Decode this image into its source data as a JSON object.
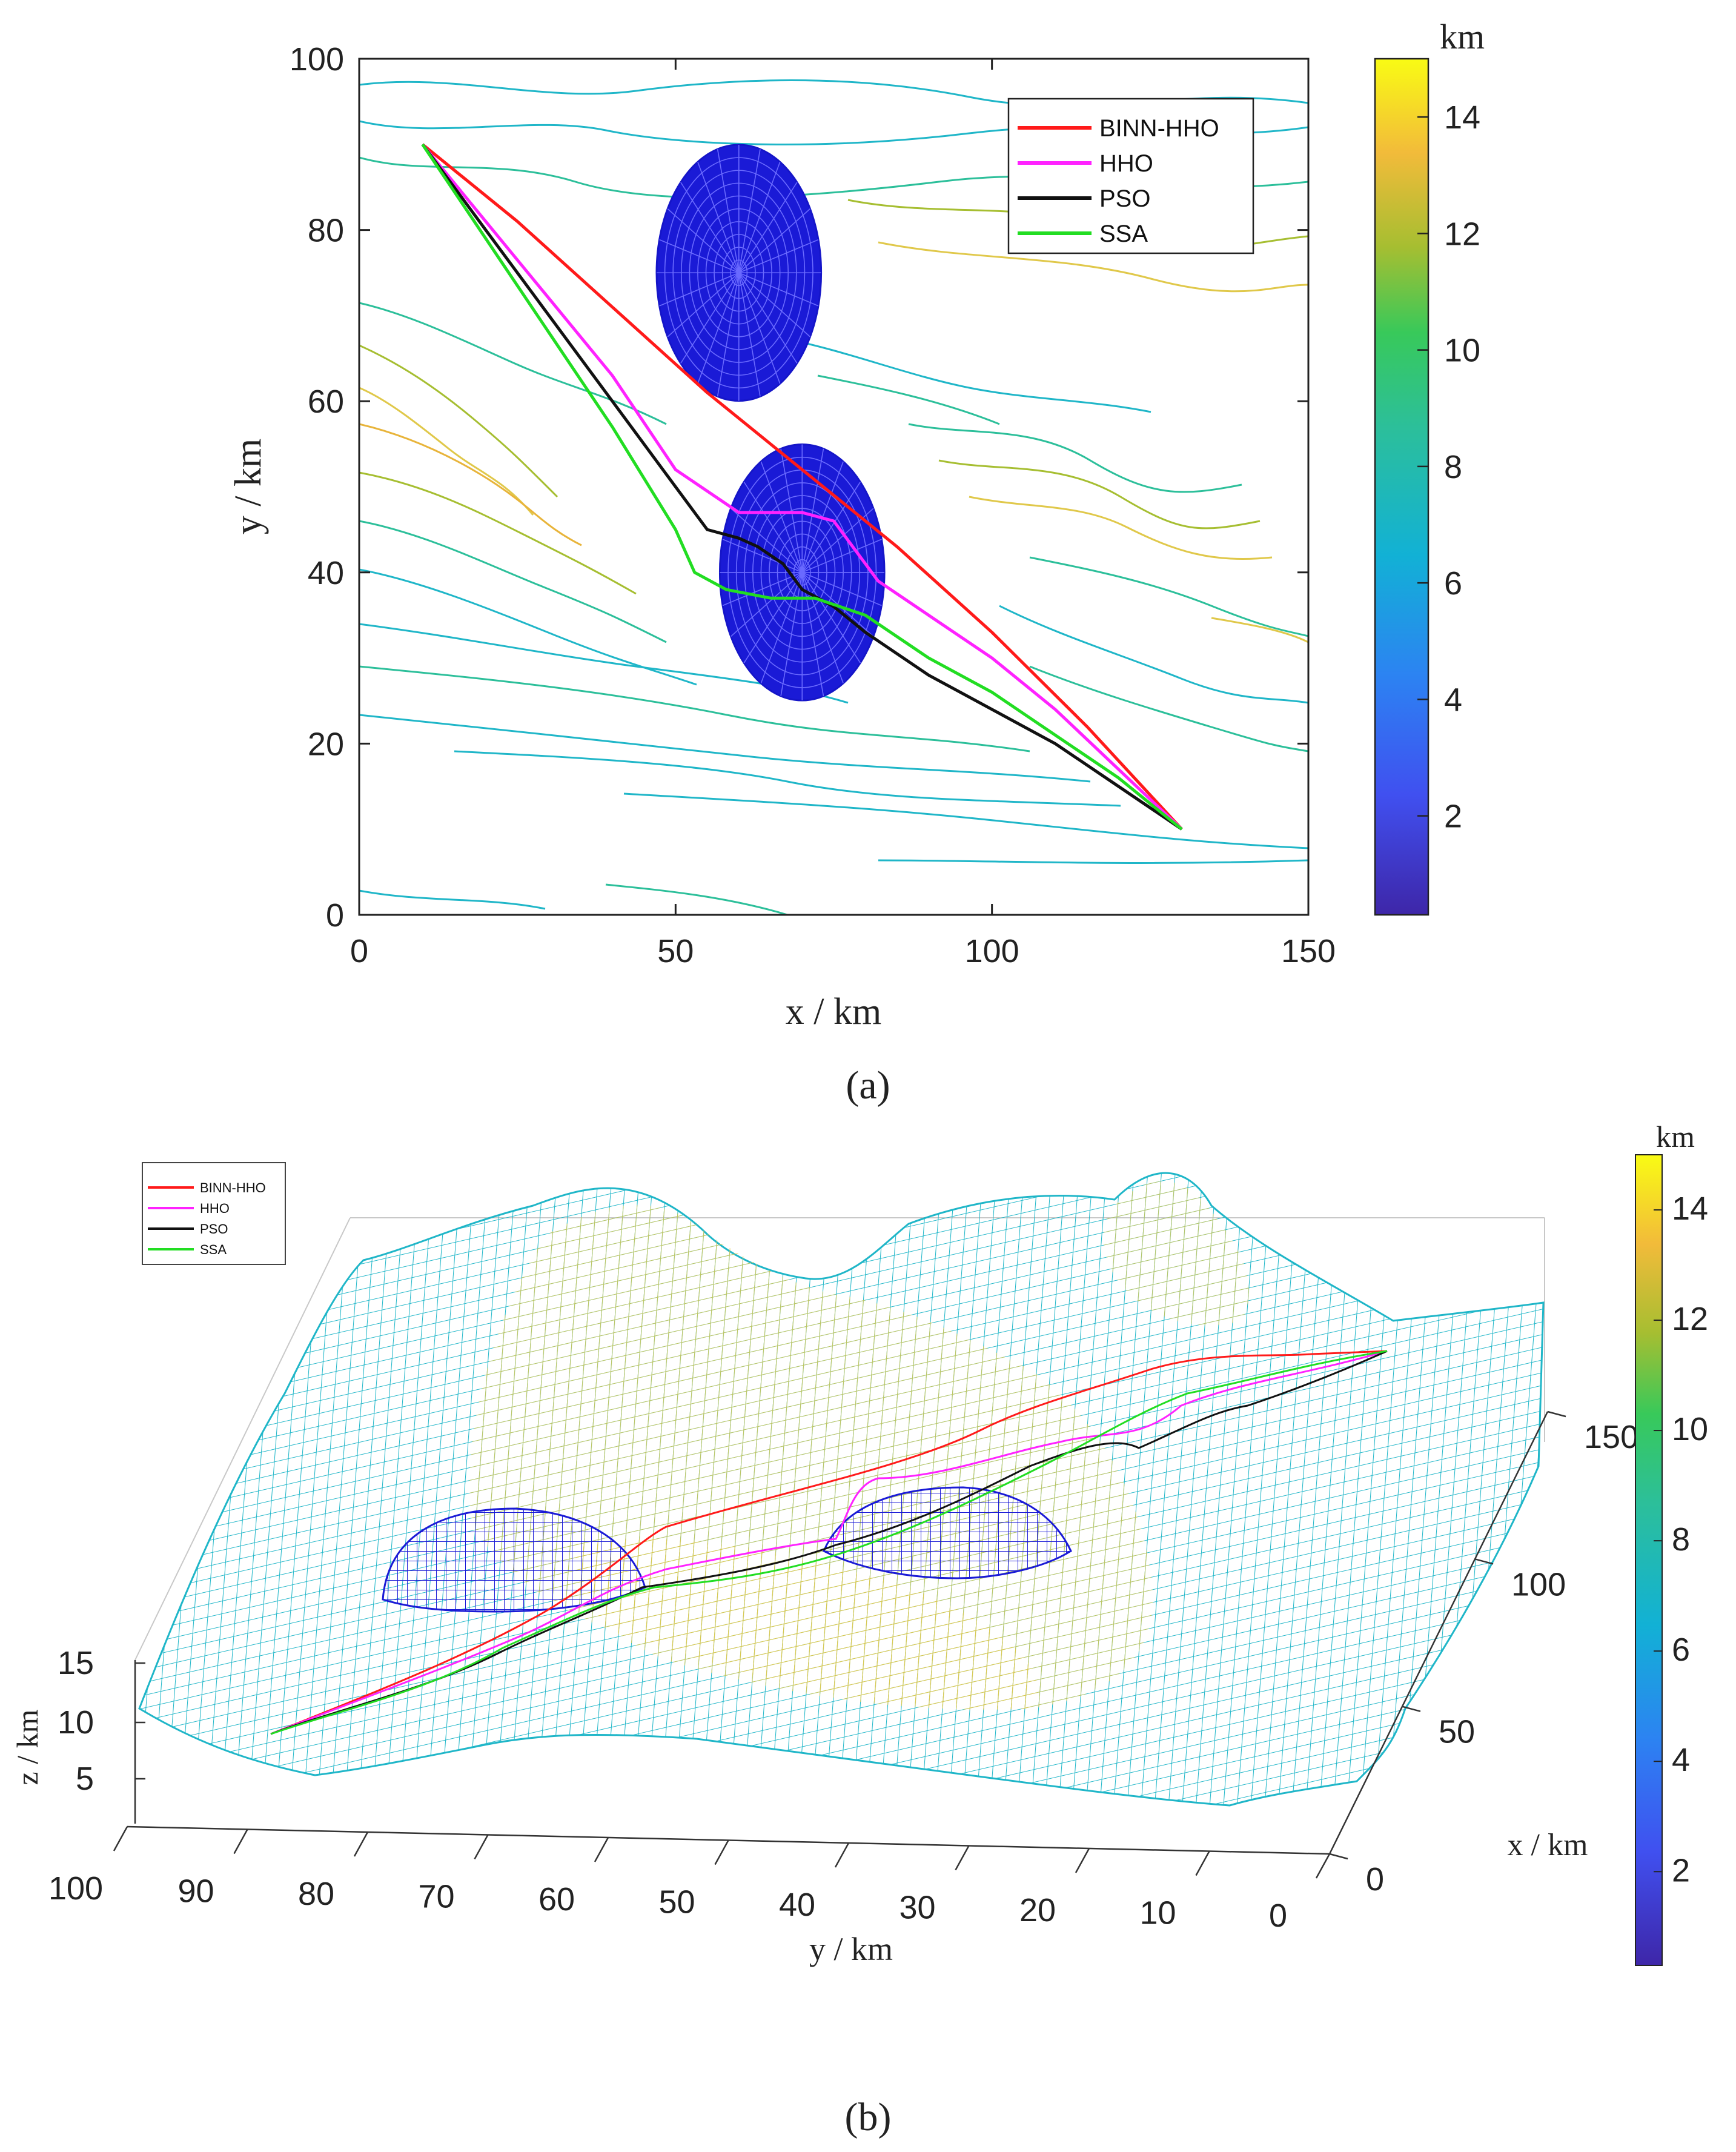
{
  "chart_data": [
    {
      "panel": "a",
      "type": "line",
      "caption": "(a)",
      "xlabel": "x / km",
      "ylabel": "y / km",
      "xlim": [
        0,
        150
      ],
      "ylim": [
        0,
        100
      ],
      "xticks": [
        0,
        50,
        100,
        150
      ],
      "yticks": [
        0,
        20,
        40,
        60,
        80,
        100
      ],
      "colorbar": {
        "label": "km",
        "ticks": [
          2,
          4,
          6,
          8,
          10,
          12,
          14
        ],
        "range": [
          0.3,
          15
        ]
      },
      "series": [
        {
          "name": "BINN-HHO",
          "color": "#ff1a1a",
          "x": [
            10,
            25,
            40,
            55,
            70,
            85,
            100,
            115,
            130
          ],
          "y": [
            90,
            81,
            71,
            61,
            52,
            43,
            33,
            22,
            10
          ]
        },
        {
          "name": "HHO",
          "color": "#ff22ff",
          "x": [
            10,
            20,
            30,
            40,
            50,
            60,
            70,
            75,
            82,
            90,
            100,
            110,
            120,
            130
          ],
          "y": [
            90,
            81,
            72,
            63,
            52,
            47,
            47,
            46,
            39,
            35,
            30,
            24,
            17,
            10
          ]
        },
        {
          "name": "PSO",
          "color": "#111111",
          "x": [
            10,
            20,
            30,
            40,
            50,
            55,
            60,
            63,
            67,
            70,
            75,
            80,
            90,
            100,
            110,
            120,
            130
          ],
          "y": [
            90,
            80,
            70,
            60,
            50,
            45,
            44,
            43,
            41,
            38,
            36,
            33,
            28,
            24,
            20,
            15,
            10
          ]
        },
        {
          "name": "SSA",
          "color": "#22dd22",
          "x": [
            10,
            20,
            30,
            40,
            50,
            53,
            58,
            65,
            72,
            80,
            90,
            100,
            110,
            120,
            130
          ],
          "y": [
            90,
            79,
            68,
            57,
            45,
            40,
            38,
            37,
            37,
            35,
            30,
            26,
            21,
            16,
            10
          ]
        }
      ],
      "threats": [
        {
          "cx": 60,
          "cy": 75,
          "r": 13
        },
        {
          "cx": 70,
          "cy": 40,
          "r": 13
        }
      ]
    },
    {
      "panel": "b",
      "type": "surface",
      "caption": "(b)",
      "xlabel": "x / km",
      "ylabel": "y / km",
      "zlabel": "z / km",
      "xticks": [
        0,
        50,
        100,
        150
      ],
      "yticks": [
        100,
        90,
        80,
        70,
        60,
        50,
        40,
        30,
        20,
        10,
        0
      ],
      "zticks": [
        5,
        10,
        15
      ],
      "colorbar": {
        "label": "km",
        "ticks": [
          2,
          4,
          6,
          8,
          10,
          12,
          14
        ],
        "range": [
          0.3,
          15
        ]
      },
      "legend": [
        "BINN-HHO",
        "HHO",
        "PSO",
        "SSA"
      ]
    }
  ]
}
